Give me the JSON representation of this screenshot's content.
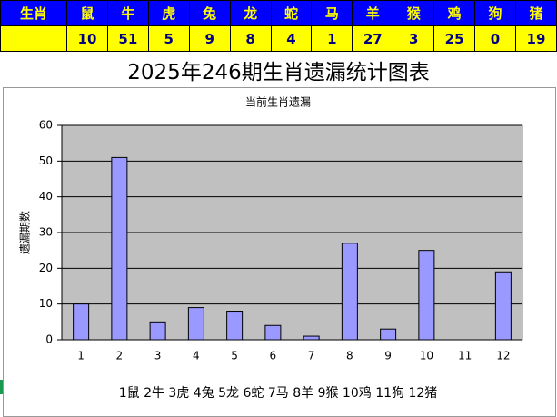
{
  "table": {
    "header": [
      "生肖",
      "鼠",
      "牛",
      "虎",
      "兔",
      "龙",
      "蛇",
      "马",
      "羊",
      "猴",
      "鸡",
      "狗",
      "猪"
    ],
    "values": [
      10,
      51,
      5,
      9,
      8,
      4,
      1,
      27,
      3,
      25,
      0,
      19
    ]
  },
  "title": "2025年246期生肖遗漏统计图表",
  "chart_data": {
    "type": "bar",
    "title": "当前生肖遗漏",
    "y_label": "遗漏期数",
    "categories": [
      "1",
      "2",
      "3",
      "4",
      "5",
      "6",
      "7",
      "8",
      "9",
      "10",
      "11",
      "12"
    ],
    "values": [
      10,
      51,
      5,
      9,
      8,
      4,
      1,
      27,
      3,
      25,
      0,
      19
    ],
    "color": "#9999ff",
    "ylim": [
      0,
      60
    ],
    "yticks": [
      0,
      10,
      20,
      30,
      40,
      50,
      60
    ],
    "grid": true,
    "legend_text": "1鼠 2牛 3虎 4兔 5龙 6蛇 7马 8羊 9猴 10鸡 11狗 12猪"
  }
}
